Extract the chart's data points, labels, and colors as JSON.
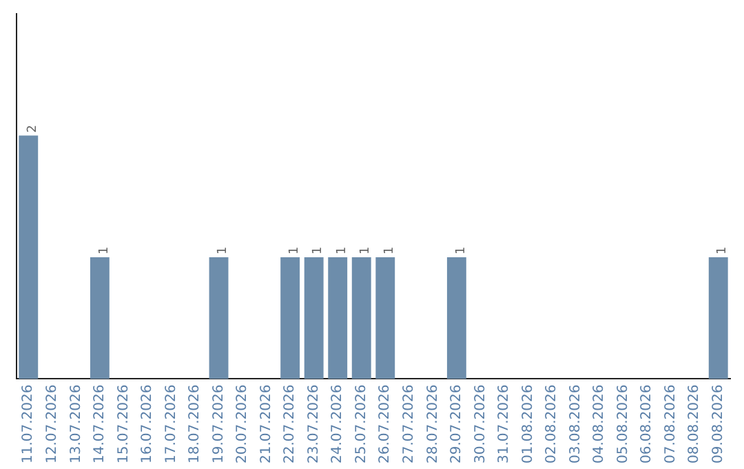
{
  "chart_data": {
    "type": "bar",
    "categories": [
      "11.07.2026",
      "12.07.2026",
      "13.07.2026",
      "14.07.2026",
      "15.07.2026",
      "16.07.2026",
      "17.07.2026",
      "18.07.2026",
      "19.07.2026",
      "20.07.2026",
      "21.07.2026",
      "22.07.2026",
      "23.07.2026",
      "24.07.2026",
      "25.07.2026",
      "26.07.2026",
      "27.07.2026",
      "28.07.2026",
      "29.07.2026",
      "30.07.2026",
      "31.07.2026",
      "01.08.2026",
      "02.08.2026",
      "03.08.2026",
      "04.08.2026",
      "05.08.2026",
      "06.08.2026",
      "07.08.2026",
      "08.08.2026",
      "09.08.2026"
    ],
    "values": [
      2,
      0,
      0,
      1,
      0,
      0,
      0,
      0,
      1,
      0,
      0,
      1,
      1,
      1,
      1,
      1,
      0,
      0,
      1,
      0,
      0,
      0,
      0,
      0,
      0,
      0,
      0,
      0,
      0,
      1
    ],
    "value_labels": [
      "2",
      null,
      null,
      "1",
      null,
      null,
      null,
      null,
      "1",
      null,
      null,
      "1",
      "1",
      "1",
      "1",
      "1",
      null,
      null,
      "1",
      null,
      null,
      null,
      null,
      null,
      null,
      null,
      null,
      null,
      null,
      "1"
    ],
    "color": "#6d8dab",
    "grid": false,
    "legend": false
  }
}
